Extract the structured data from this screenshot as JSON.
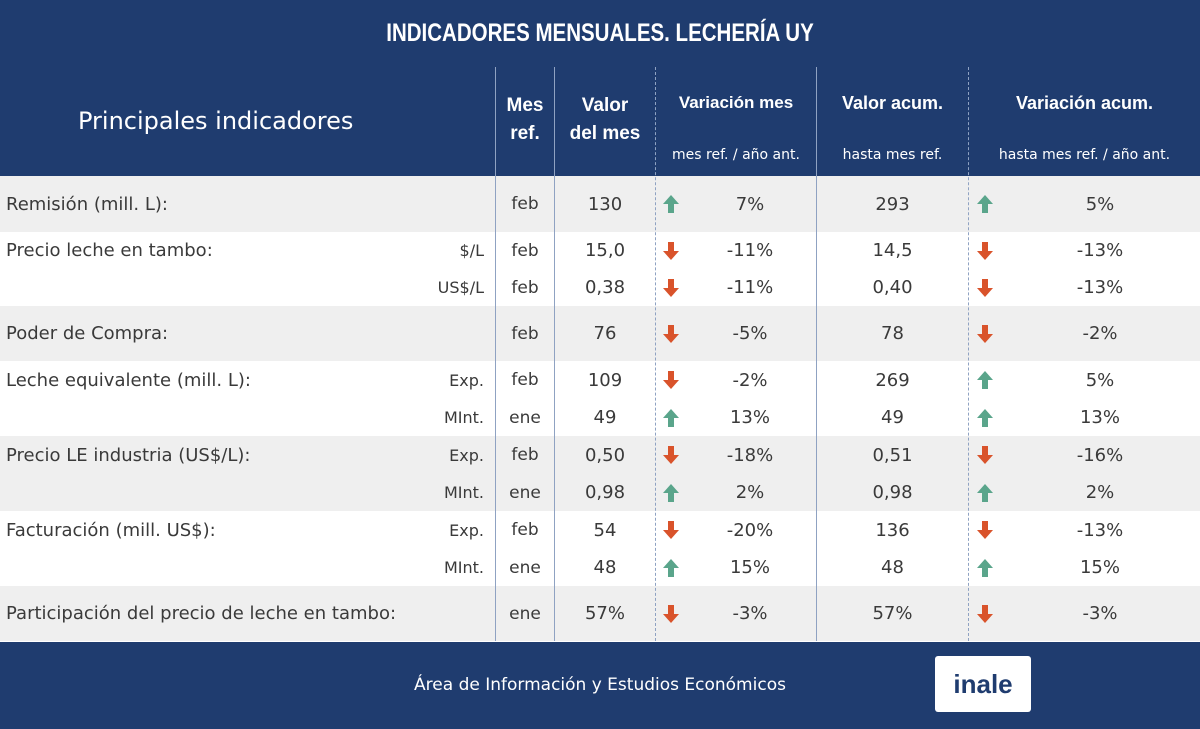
{
  "title": "INDICADORES MENSUALES. LECHERÍA UY",
  "header": {
    "main": "Principales indicadores",
    "mes_line1": "Mes",
    "mes_line2": "ref.",
    "valor_line1": "Valor",
    "valor_line2": "del mes",
    "var_title": "Variación mes",
    "var_sub": "mes ref. / año ant.",
    "acum_title": "Valor acum.",
    "acum_sub": "hasta mes ref.",
    "varacum_title": "Variación acum.",
    "varacum_sub": "hasta mes ref. / año ant."
  },
  "rows": [
    {
      "label": "Remisión (mill. L):",
      "unit": "",
      "mes": "feb",
      "valor": "130",
      "arrow1": "up",
      "var": "7%",
      "acum": "293",
      "arrow2": "up",
      "varacum": "5%"
    },
    {
      "label": "Precio leche en tambo:",
      "unit": "$/L",
      "mes": "feb",
      "valor": "15,0",
      "arrow1": "down",
      "var": "-11%",
      "acum": "14,5",
      "arrow2": "down",
      "varacum": "-13%"
    },
    {
      "label": "",
      "unit": "US$/L",
      "mes": "feb",
      "valor": "0,38",
      "arrow1": "down",
      "var": "-11%",
      "acum": "0,40",
      "arrow2": "down",
      "varacum": "-13%"
    },
    {
      "label": "Poder de Compra:",
      "unit": "",
      "mes": "feb",
      "valor": "76",
      "arrow1": "down",
      "var": "-5%",
      "acum": "78",
      "arrow2": "down",
      "varacum": "-2%"
    },
    {
      "label": "Leche equivalente (mill. L):",
      "unit": "Exp.",
      "mes": "feb",
      "valor": "109",
      "arrow1": "down",
      "var": "-2%",
      "acum": "269",
      "arrow2": "up",
      "varacum": "5%"
    },
    {
      "label": "",
      "unit": "MInt.",
      "mes": "ene",
      "valor": "49",
      "arrow1": "up",
      "var": "13%",
      "acum": "49",
      "arrow2": "up",
      "varacum": "13%"
    },
    {
      "label": "Precio LE industria (US$/L):",
      "unit": "Exp.",
      "mes": "feb",
      "valor": "0,50",
      "arrow1": "down",
      "var": "-18%",
      "acum": "0,51",
      "arrow2": "down",
      "varacum": "-16%"
    },
    {
      "label": "",
      "unit": "MInt.",
      "mes": "ene",
      "valor": "0,98",
      "arrow1": "up",
      "var": "2%",
      "acum": "0,98",
      "arrow2": "up",
      "varacum": "2%"
    },
    {
      "label": "Facturación (mill. US$):",
      "unit": "Exp.",
      "mes": "feb",
      "valor": "54",
      "arrow1": "down",
      "var": "-20%",
      "acum": "136",
      "arrow2": "down",
      "varacum": "-13%"
    },
    {
      "label": "",
      "unit": "MInt.",
      "mes": "ene",
      "valor": "48",
      "arrow1": "up",
      "var": "15%",
      "acum": "48",
      "arrow2": "up",
      "varacum": "15%"
    },
    {
      "label": "Participación del precio de leche en tambo:",
      "unit": "",
      "mes": "ene",
      "valor": "57%",
      "arrow1": "down",
      "var": "-3%",
      "acum": "57%",
      "arrow2": "down",
      "varacum": "-3%"
    }
  ],
  "footer": {
    "text": "Área de Información y Estudios Económicos",
    "logo": "inale"
  },
  "colors": {
    "navy": "#1f3c6f",
    "up_arrow": "#5aa58b",
    "down_arrow": "#d9532b",
    "row_shade": "#efefef"
  }
}
